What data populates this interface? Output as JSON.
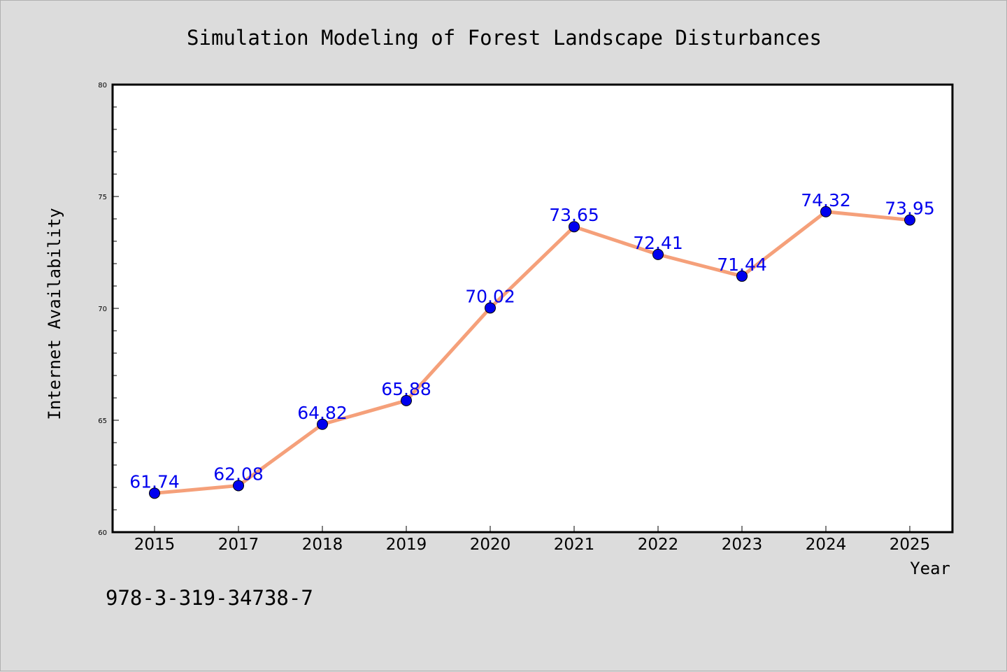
{
  "footer": {
    "isbn": "978-3-319-34738-7"
  },
  "colors": {
    "background": "#dcdcdc",
    "plot_background": "#ffffff",
    "line": "#f5a07a",
    "marker": "#0000ee",
    "data_label": "#0000ee"
  },
  "chart_data": {
    "type": "line",
    "title": "Simulation Modeling of Forest Landscape Disturbances",
    "xlabel": "Year",
    "ylabel": "Internet Availability",
    "categories": [
      "2015",
      "2017",
      "2018",
      "2019",
      "2020",
      "2021",
      "2022",
      "2023",
      "2024",
      "2025"
    ],
    "series": [
      {
        "values": [
          61.74,
          62.08,
          64.82,
          65.88,
          70.02,
          73.65,
          72.41,
          71.44,
          74.32,
          73.95
        ]
      }
    ],
    "data_labels": [
      "61.74",
      "62.08",
      "64.82",
      "65.88",
      "70.02",
      "73.65",
      "72.41",
      "71.44",
      "74.32",
      "73.95"
    ],
    "ylim": [
      60,
      80
    ],
    "yticks": [
      "60",
      "65",
      "70",
      "75",
      "80"
    ],
    "grid": false,
    "legend": false,
    "marker": "circle"
  }
}
